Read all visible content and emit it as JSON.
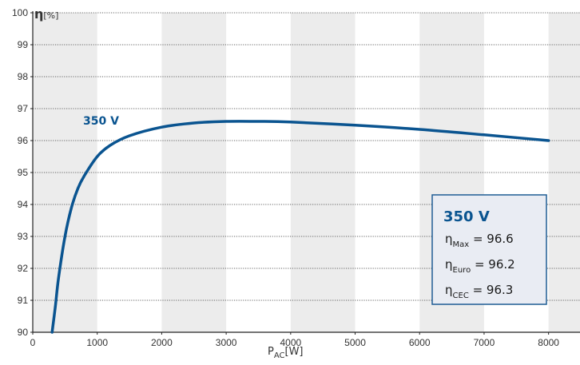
{
  "chart_data": {
    "type": "line",
    "xlim": [
      0,
      8500
    ],
    "ylim": [
      90,
      100
    ],
    "x_ticks": [
      0,
      1000,
      2000,
      3000,
      4000,
      5000,
      6000,
      7000,
      8000
    ],
    "y_ticks": [
      90,
      91,
      92,
      93,
      94,
      95,
      96,
      97,
      98,
      99,
      100
    ],
    "xlabel_main": "P",
    "xlabel_sub": "AC",
    "xlabel_unit": "[W]",
    "ylabel_symbol": "η",
    "ylabel_unit": "[%]",
    "grid": "horizontal dotted lines, alternating vertical bands",
    "series": [
      {
        "name": "350 V",
        "color": "#0a5490",
        "x": [
          300,
          350,
          400,
          500,
          600,
          700,
          800,
          1000,
          1200,
          1500,
          2000,
          2500,
          3000,
          3500,
          4000,
          5000,
          6000,
          7000,
          8000
        ],
        "y": [
          90.0,
          90.8,
          91.7,
          93.0,
          93.9,
          94.5,
          94.9,
          95.5,
          95.85,
          96.15,
          96.42,
          96.55,
          96.6,
          96.6,
          96.58,
          96.48,
          96.35,
          96.18,
          96.0
        ]
      }
    ],
    "series_label": "350 V",
    "series_label_at": [
      1400,
      96.55
    ],
    "info_box": {
      "title": "350 V",
      "lines": [
        {
          "symbol": "η",
          "sub": "Max",
          "text": " = 96.6"
        },
        {
          "symbol": "η",
          "sub": "Euro",
          "text": " = 96.2"
        },
        {
          "symbol": "η",
          "sub": "CEC",
          "text": " = 96.3"
        }
      ]
    }
  },
  "colors": {
    "band": "#ececec",
    "grid": "#666666",
    "axis": "#222222",
    "box_fill": "#e9ecf3",
    "box_border": "#1f5d94",
    "title_blue": "#0a5490"
  }
}
